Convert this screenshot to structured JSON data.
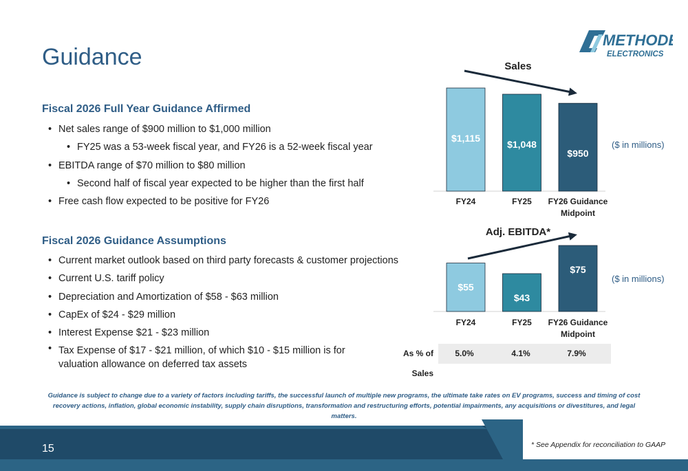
{
  "title": "Guidance",
  "logo": {
    "line1": "METHODE",
    "line2": "ELECTRONICS"
  },
  "section1": {
    "heading": "Fiscal 2026 Full Year Guidance Affirmed",
    "bullets": [
      "Net sales range of $900 million to $1,000 million",
      "FY25 was a 53-week fiscal year, and FY26 is a 52-week fiscal year",
      "EBITDA range of $70 million to $80 million",
      "Second half of fiscal year expected to be higher than the first half",
      "Free cash flow expected to be positive for FY26"
    ]
  },
  "section2": {
    "heading": "Fiscal 2026 Guidance Assumptions",
    "bullets": [
      "Current market outlook based on third party forecasts & customer projections",
      "Current U.S. tariff policy",
      "Depreciation and Amortization of $58 - $63 million",
      "CapEx of $24 - $29 million",
      "Interest Expense $21 - $23 million",
      "Tax Expense of $17 - $21 million, of which $10 - $15 million is for valuation allowance on deferred tax assets"
    ]
  },
  "chart_data": [
    {
      "type": "bar",
      "title": "Sales",
      "unit_label": "($ in millions)",
      "categories": [
        "FY24",
        "FY25",
        "FY26 Guidance Midpoint"
      ],
      "values": [
        1115,
        1048,
        950
      ],
      "data_labels": [
        "$1,115",
        "$1,048",
        "$950"
      ],
      "colors": [
        "#8ecae0",
        "#2e8aa0",
        "#2c5c79"
      ],
      "ylim": [
        0,
        1115
      ],
      "trend_arrow": "down"
    },
    {
      "type": "bar",
      "title": "Adj. EBITDA*",
      "unit_label": "($ in millions)",
      "categories": [
        "FY24",
        "FY25",
        "FY26 Guidance Midpoint"
      ],
      "values": [
        55,
        43,
        75
      ],
      "data_labels": [
        "$55",
        "$43",
        "$75"
      ],
      "colors": [
        "#8ecae0",
        "#2e8aa0",
        "#2c5c79"
      ],
      "ylim": [
        0,
        75
      ],
      "trend_arrow": "up"
    }
  ],
  "pct_of_sales": {
    "label": "As % of Sales",
    "values": [
      "5.0%",
      "4.1%",
      "7.9%"
    ]
  },
  "disclaimer": "Guidance is subject to change due to a variety of factors including tariffs, the successful launch of multiple new programs, the ultimate take rates on EV programs, success and timing of cost recovery actions, inflation, global economic instability, supply chain disruptions, transformation and restructuring efforts, potential impairments, any acquisitions or divestitures, and legal matters.",
  "footer": {
    "page_number": "15",
    "note": "* See Appendix for reconciliation to GAAP"
  },
  "colors": {
    "brand_blue": "#2f5d86",
    "footer_dark": "#1f4a68",
    "footer_mid": "#2c6485"
  }
}
